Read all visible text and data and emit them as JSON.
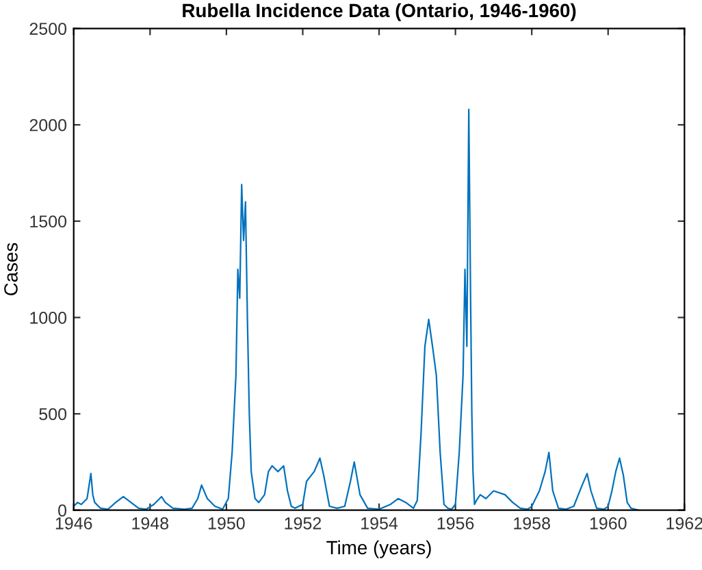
{
  "chart_data": {
    "type": "line",
    "title": "Rubella Incidence Data (Ontario, 1946-1960)",
    "xlabel": "Time (years)",
    "ylabel": "Cases",
    "xlim": [
      1946,
      1962
    ],
    "xticks": [
      1946,
      1948,
      1950,
      1952,
      1954,
      1956,
      1958,
      1960,
      1962
    ],
    "ylim": [
      0,
      2500
    ],
    "yticks": [
      0,
      500,
      1000,
      1500,
      2000,
      2500
    ],
    "grid": false,
    "series": [
      {
        "color": "#0072bd",
        "x": [
          1946.0,
          1946.1,
          1946.2,
          1946.35,
          1946.45,
          1946.5,
          1946.55,
          1946.7,
          1946.9,
          1947.1,
          1947.3,
          1947.5,
          1947.7,
          1947.9,
          1948.1,
          1948.3,
          1948.4,
          1948.6,
          1948.9,
          1949.1,
          1949.25,
          1949.35,
          1949.5,
          1949.7,
          1949.9,
          1950.05,
          1950.15,
          1950.25,
          1950.3,
          1950.35,
          1950.4,
          1950.45,
          1950.5,
          1950.55,
          1950.6,
          1950.65,
          1950.75,
          1950.85,
          1951.0,
          1951.1,
          1951.2,
          1951.35,
          1951.5,
          1951.6,
          1951.7,
          1951.8,
          1952.0,
          1952.1,
          1952.3,
          1952.45,
          1952.55,
          1952.7,
          1952.9,
          1953.1,
          1953.25,
          1953.35,
          1953.5,
          1953.7,
          1954.0,
          1954.3,
          1954.5,
          1954.7,
          1954.9,
          1955.0,
          1955.1,
          1955.2,
          1955.3,
          1955.4,
          1955.5,
          1955.6,
          1955.7,
          1955.8,
          1955.9,
          1956.0,
          1956.1,
          1956.2,
          1956.25,
          1956.3,
          1956.35,
          1956.4,
          1956.43,
          1956.46,
          1956.5,
          1956.55,
          1956.65,
          1956.8,
          1957.0,
          1957.3,
          1957.5,
          1957.7,
          1957.9,
          1958.0,
          1958.2,
          1958.35,
          1958.45,
          1958.55,
          1958.7,
          1958.9,
          1959.1,
          1959.3,
          1959.45,
          1959.55,
          1959.7,
          1959.9,
          1960.0,
          1960.1,
          1960.2,
          1960.3,
          1960.4,
          1960.5,
          1960.6,
          1960.7,
          1960.8
        ],
        "values": [
          20,
          40,
          30,
          60,
          190,
          80,
          40,
          10,
          5,
          40,
          70,
          40,
          10,
          5,
          30,
          70,
          40,
          10,
          5,
          10,
          60,
          130,
          60,
          20,
          5,
          60,
          300,
          700,
          1250,
          1100,
          1690,
          1400,
          1600,
          1000,
          500,
          200,
          60,
          40,
          80,
          200,
          230,
          200,
          230,
          100,
          20,
          10,
          30,
          150,
          200,
          270,
          180,
          20,
          10,
          20,
          150,
          250,
          80,
          10,
          5,
          30,
          60,
          40,
          10,
          50,
          400,
          850,
          990,
          850,
          700,
          300,
          30,
          10,
          5,
          30,
          300,
          700,
          1250,
          850,
          2080,
          1050,
          500,
          200,
          30,
          50,
          80,
          60,
          100,
          80,
          40,
          10,
          5,
          20,
          100,
          200,
          300,
          100,
          10,
          5,
          20,
          120,
          190,
          100,
          10,
          5,
          20,
          100,
          200,
          270,
          180,
          40,
          10,
          5,
          0
        ]
      }
    ]
  }
}
